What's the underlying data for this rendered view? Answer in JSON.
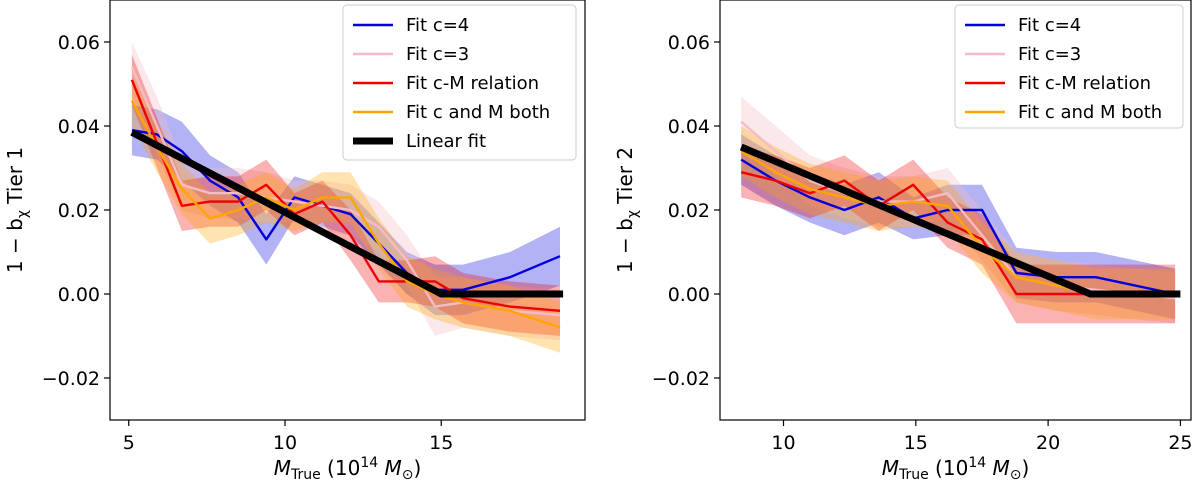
{
  "chart_data": [
    {
      "type": "line",
      "panel": "left",
      "xlim": [
        4.4,
        19.6
      ],
      "ylim": [
        -0.03,
        0.07
      ],
      "xticks": [
        5,
        10,
        15
      ],
      "yticks": [
        -0.02,
        0.0,
        0.02,
        0.04,
        0.06
      ],
      "tick_labels_x": [
        "5",
        "10",
        "15"
      ],
      "tick_labels_y": [
        "−0.02",
        "0.00",
        "0.02",
        "0.04",
        "0.06"
      ],
      "xlabel": {
        "main": "M",
        "sub": "True",
        "rest": " (10",
        "sup": "14",
        "tail": " M",
        "odot": "⊙",
        "close": ")"
      },
      "ylabel": {
        "pre": "1 − b",
        "sub": "χ",
        "post": " Tier 1"
      },
      "legend": {
        "placement": "top-right",
        "entries": [
          {
            "label": "Fit c=4",
            "color": "#0000dd"
          },
          {
            "label": "Fit c=3",
            "color": "#f4bcc4"
          },
          {
            "label": "Fit c-M relation",
            "color": "#ee0000"
          },
          {
            "label": "Fit c and M both",
            "color": "#ffa500"
          },
          {
            "label": "Linear fit",
            "color": "#000000"
          }
        ]
      },
      "series": [
        {
          "name": "Fit c=4",
          "color": "#0000dd",
          "band_opacity": 0.3,
          "x": [
            5.1,
            5.9,
            6.7,
            7.6,
            8.5,
            9.4,
            10.3,
            11.2,
            12.1,
            13.0,
            13.9,
            14.8,
            15.7,
            17.2,
            18.8
          ],
          "y": [
            0.039,
            0.038,
            0.034,
            0.027,
            0.023,
            0.013,
            0.023,
            0.021,
            0.019,
            0.012,
            0.005,
            0.001,
            0.001,
            0.004,
            0.009
          ],
          "err": [
            0.006,
            0.006,
            0.007,
            0.006,
            0.006,
            0.006,
            0.005,
            0.005,
            0.005,
            0.005,
            0.005,
            0.006,
            0.006,
            0.006,
            0.007
          ]
        },
        {
          "name": "Fit c=3",
          "color": "#f4bcc4",
          "band_opacity": 0.35,
          "x": [
            5.1,
            5.9,
            6.7,
            7.6,
            8.5,
            9.4,
            10.3,
            11.2,
            12.1,
            13.0,
            13.9,
            14.8,
            15.7,
            17.2,
            18.8
          ],
          "y": [
            0.054,
            0.04,
            0.026,
            0.024,
            0.024,
            0.023,
            0.022,
            0.021,
            0.02,
            0.016,
            0.008,
            -0.003,
            -0.002,
            -0.004,
            -0.005
          ],
          "err": [
            0.006,
            0.007,
            0.006,
            0.006,
            0.006,
            0.006,
            0.005,
            0.006,
            0.006,
            0.006,
            0.006,
            0.007,
            0.006,
            0.006,
            0.006
          ]
        },
        {
          "name": "Fit c-M relation",
          "color": "#ee0000",
          "band_opacity": 0.3,
          "x": [
            5.1,
            5.9,
            6.7,
            7.6,
            8.5,
            9.4,
            10.3,
            11.2,
            12.1,
            13.0,
            13.9,
            14.8,
            15.7,
            17.2,
            18.8
          ],
          "y": [
            0.051,
            0.036,
            0.021,
            0.022,
            0.022,
            0.026,
            0.019,
            0.022,
            0.014,
            0.003,
            0.003,
            0.003,
            -0.001,
            -0.003,
            -0.004
          ],
          "err": [
            0.006,
            0.006,
            0.006,
            0.006,
            0.006,
            0.006,
            0.005,
            0.005,
            0.006,
            0.005,
            0.005,
            0.006,
            0.006,
            0.006,
            0.006
          ]
        },
        {
          "name": "Fit c and M both",
          "color": "#ffa500",
          "band_opacity": 0.3,
          "x": [
            5.1,
            5.9,
            6.7,
            7.6,
            8.5,
            9.4,
            10.3,
            11.2,
            12.1,
            13.0,
            13.9,
            14.8,
            15.7,
            17.2,
            18.8
          ],
          "y": [
            0.046,
            0.035,
            0.025,
            0.018,
            0.02,
            0.023,
            0.02,
            0.023,
            0.023,
            0.012,
            0.003,
            0.0,
            -0.002,
            -0.004,
            -0.008
          ],
          "err": [
            0.006,
            0.006,
            0.006,
            0.006,
            0.006,
            0.006,
            0.005,
            0.006,
            0.006,
            0.006,
            0.006,
            0.006,
            0.006,
            0.006,
            0.006
          ]
        }
      ],
      "linear_fit": {
        "name": "Linear fit",
        "x": [
          5.1,
          15.0,
          18.9
        ],
        "y": [
          0.0385,
          0.0,
          0.0
        ]
      }
    },
    {
      "type": "line",
      "panel": "right",
      "xlim": [
        7.6,
        25.4
      ],
      "ylim": [
        -0.03,
        0.07
      ],
      "xticks": [
        10,
        15,
        20,
        25
      ],
      "yticks": [
        -0.02,
        0.0,
        0.02,
        0.04,
        0.06
      ],
      "tick_labels_x": [
        "10",
        "15",
        "20",
        "25"
      ],
      "tick_labels_y": [
        "−0.02",
        "0.00",
        "0.02",
        "0.04",
        "0.06"
      ],
      "xlabel": {
        "main": "M",
        "sub": "True",
        "rest": " (10",
        "sup": "14",
        "tail": " M",
        "odot": "⊙",
        "close": ")"
      },
      "ylabel": {
        "pre": "1 − b",
        "sub": "χ",
        "post": " Tier 2"
      },
      "legend": {
        "placement": "top-right",
        "entries": [
          {
            "label": "Fit c=4",
            "color": "#0000dd"
          },
          {
            "label": "Fit c=3",
            "color": "#f4bcc4"
          },
          {
            "label": "Fit c-M relation",
            "color": "#ee0000"
          },
          {
            "label": "Fit c and M both",
            "color": "#ffa500"
          }
        ]
      },
      "series": [
        {
          "name": "Fit c=4",
          "color": "#0000dd",
          "band_opacity": 0.3,
          "x": [
            8.4,
            9.7,
            11.0,
            12.3,
            13.6,
            14.9,
            16.2,
            17.5,
            18.8,
            20.3,
            21.8,
            23.3,
            24.8
          ],
          "y": [
            0.032,
            0.027,
            0.023,
            0.02,
            0.023,
            0.018,
            0.02,
            0.02,
            0.005,
            0.004,
            0.004,
            0.002,
            0.0
          ],
          "err": [
            0.006,
            0.006,
            0.006,
            0.006,
            0.006,
            0.005,
            0.006,
            0.006,
            0.006,
            0.006,
            0.006,
            0.006,
            0.006
          ]
        },
        {
          "name": "Fit c=3",
          "color": "#f4bcc4",
          "band_opacity": 0.35,
          "x": [
            8.4,
            9.7,
            11.0,
            12.3,
            13.6,
            14.9,
            16.2,
            17.5,
            18.8,
            20.3,
            21.8,
            23.3,
            24.8
          ],
          "y": [
            0.041,
            0.034,
            0.027,
            0.024,
            0.022,
            0.022,
            0.024,
            0.014,
            0.004,
            0.002,
            0.001,
            0.0,
            -0.001
          ],
          "err": [
            0.006,
            0.006,
            0.006,
            0.006,
            0.006,
            0.006,
            0.006,
            0.006,
            0.006,
            0.006,
            0.006,
            0.006,
            0.006
          ]
        },
        {
          "name": "Fit c-M relation",
          "color": "#ee0000",
          "band_opacity": 0.3,
          "x": [
            8.4,
            9.7,
            11.0,
            12.3,
            13.6,
            14.9,
            16.2,
            17.5,
            18.8,
            20.3,
            21.8,
            23.3,
            24.8
          ],
          "y": [
            0.029,
            0.027,
            0.024,
            0.027,
            0.021,
            0.026,
            0.017,
            0.013,
            0.0,
            0.0,
            0.0,
            0.0,
            0.0
          ],
          "err": [
            0.006,
            0.006,
            0.006,
            0.006,
            0.006,
            0.006,
            0.006,
            0.006,
            0.007,
            0.007,
            0.007,
            0.007,
            0.007
          ]
        },
        {
          "name": "Fit c and M both",
          "color": "#ffa500",
          "band_opacity": 0.3,
          "x": [
            8.4,
            9.7,
            11.0,
            12.3,
            13.6,
            14.9,
            16.2,
            17.5,
            18.8,
            20.3,
            21.8,
            23.3,
            24.8
          ],
          "y": [
            0.034,
            0.029,
            0.025,
            0.023,
            0.021,
            0.022,
            0.021,
            0.011,
            0.004,
            0.002,
            0.0,
            0.0,
            0.0
          ],
          "err": [
            0.006,
            0.006,
            0.006,
            0.006,
            0.006,
            0.006,
            0.006,
            0.006,
            0.006,
            0.006,
            0.006,
            0.006,
            0.006
          ]
        }
      ],
      "linear_fit": {
        "name": "Linear fit",
        "x": [
          8.4,
          21.6,
          25.0
        ],
        "y": [
          0.035,
          0.0,
          0.0
        ]
      }
    }
  ]
}
